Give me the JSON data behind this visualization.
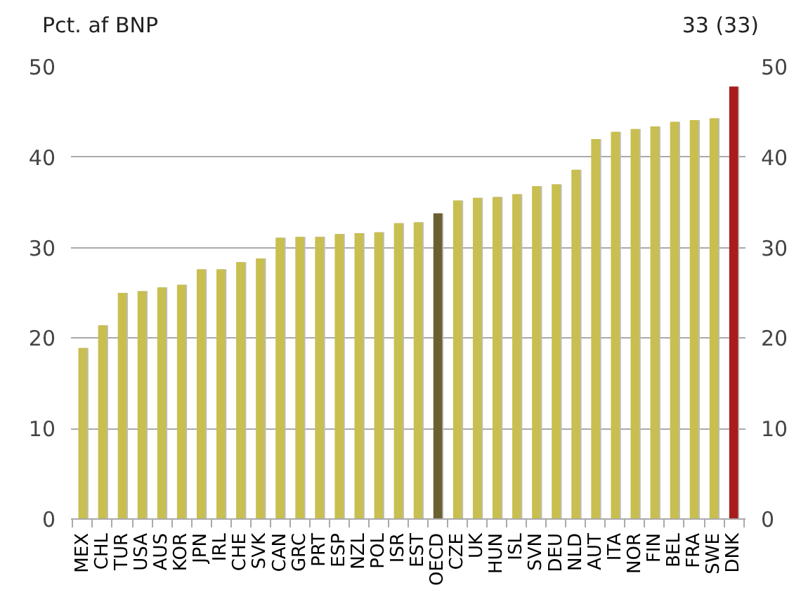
{
  "chart_data": {
    "type": "bar",
    "ylabel": "Pct. af BNP",
    "annotations": [
      "33 (33)"
    ],
    "categories": [
      "MEX",
      "CHL",
      "TUR",
      "USA",
      "AUS",
      "KOR",
      "JPN",
      "IRL",
      "CHE",
      "SVK",
      "CAN",
      "GRC",
      "PRT",
      "ESP",
      "NZL",
      "POL",
      "ISR",
      "EST",
      "OECD",
      "CZE",
      "UK",
      "HUN",
      "ISL",
      "SVN",
      "DEU",
      "NLD",
      "AUT",
      "ITA",
      "NOR",
      "FIN",
      "BEL",
      "FRA",
      "SWE",
      "DNK"
    ],
    "values": [
      18.9,
      21.4,
      25.0,
      25.2,
      25.6,
      25.9,
      27.6,
      27.6,
      28.4,
      28.8,
      31.1,
      31.2,
      31.2,
      31.5,
      31.6,
      31.7,
      32.7,
      32.8,
      33.8,
      35.2,
      35.5,
      35.6,
      35.9,
      36.8,
      37.0,
      38.6,
      42.0,
      42.8,
      43.1,
      43.4,
      43.9,
      44.1,
      44.3,
      47.8
    ],
    "colors": [
      "#c8bf50",
      "#c8bf50",
      "#c8bf50",
      "#c8bf50",
      "#c8bf50",
      "#c8bf50",
      "#c8bf50",
      "#c8bf50",
      "#c8bf50",
      "#c8bf50",
      "#c8bf50",
      "#c8bf50",
      "#c8bf50",
      "#c8bf50",
      "#c8bf50",
      "#c8bf50",
      "#c8bf50",
      "#c8bf50",
      "#6b6030",
      "#c8bf50",
      "#c8bf50",
      "#c8bf50",
      "#c8bf50",
      "#c8bf50",
      "#c8bf50",
      "#c8bf50",
      "#c8bf50",
      "#c8bf50",
      "#c8bf50",
      "#c8bf50",
      "#c8bf50",
      "#c8bf50",
      "#c8bf50",
      "#a81c1c"
    ],
    "ylim": [
      0,
      50
    ],
    "yticks": [
      0,
      10,
      20,
      30,
      40,
      50
    ],
    "y2lim": [
      0,
      50
    ],
    "y2ticks": [
      0,
      10,
      20,
      30,
      40,
      50
    ],
    "grid": "y"
  }
}
